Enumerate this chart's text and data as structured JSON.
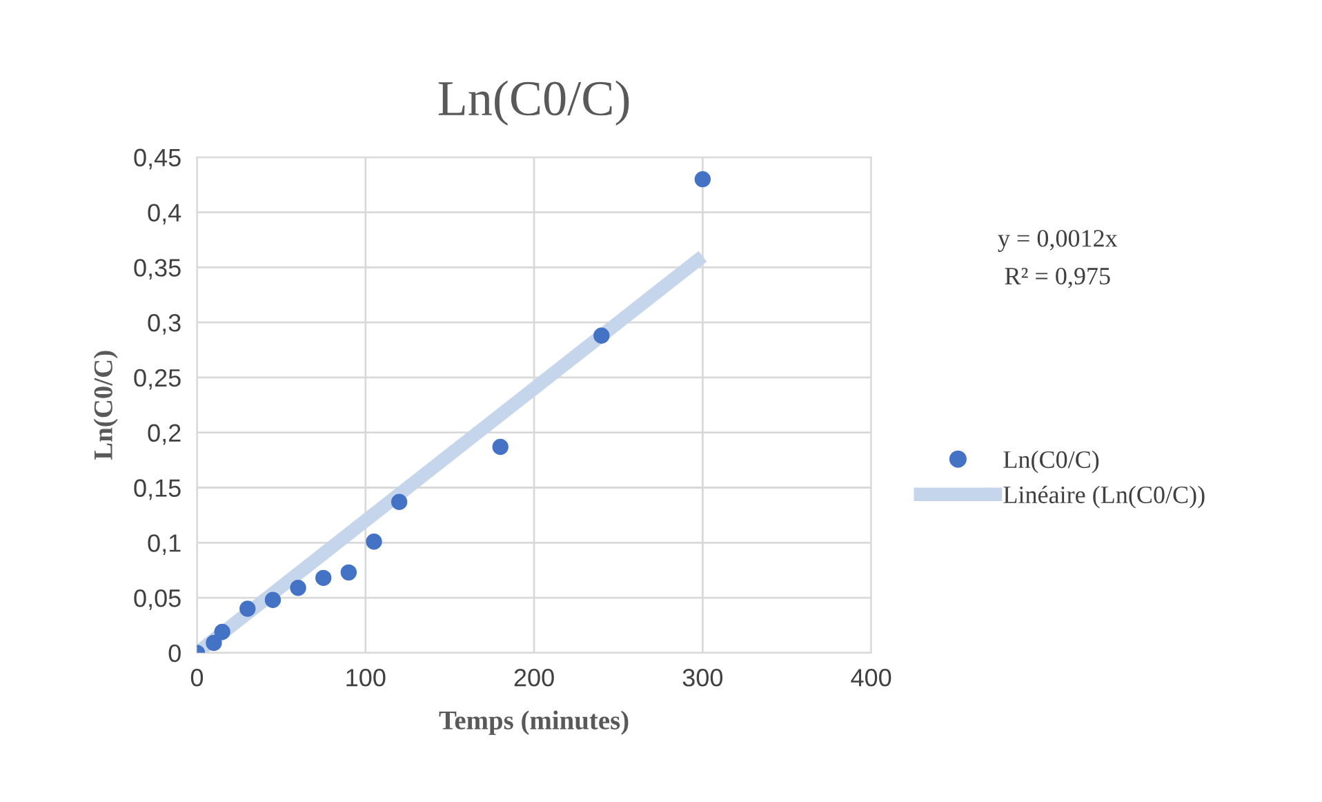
{
  "chart_data": {
    "type": "scatter",
    "title": "Ln(C0/C)",
    "xlabel": "Temps (minutes)",
    "ylabel": "Ln(C0/C)",
    "x": [
      0,
      10,
      15,
      30,
      45,
      60,
      75,
      90,
      105,
      120,
      180,
      240,
      300
    ],
    "series": [
      {
        "name": "Ln(C0/C)",
        "marker": "circle",
        "color": "#4472c4",
        "values": [
          0,
          0.009,
          0.019,
          0.04,
          0.048,
          0.059,
          0.068,
          0.073,
          0.101,
          0.137,
          0.187,
          0.288,
          0.43
        ]
      },
      {
        "name": "Linéaire (Ln(C0/C))",
        "type": "line",
        "marker": "none",
        "color": "#c5d5ec",
        "x": [
          0,
          300
        ],
        "values": [
          0,
          0.36
        ]
      }
    ],
    "annotations": [
      "y = 0,0012x",
      "R² = 0,975"
    ],
    "xlim": [
      0,
      400
    ],
    "xticks": [
      0,
      100,
      200,
      300,
      400
    ],
    "ylim": [
      0,
      0.45
    ],
    "yticks": [
      0,
      {
        "value": 0.05,
        "label": "0,05"
      },
      {
        "value": 0.1,
        "label": "0,1"
      },
      {
        "value": 0.15,
        "label": "0,15"
      },
      {
        "value": 0.2,
        "label": "0,2"
      },
      {
        "value": 0.25,
        "label": "0,25"
      },
      {
        "value": 0.3,
        "label": "0,3"
      },
      {
        "value": 0.35,
        "label": "0,35"
      },
      {
        "value": 0.4,
        "label": "0,4"
      },
      {
        "value": 0.45,
        "label": "0,45"
      }
    ],
    "grid": true,
    "legend": "right"
  }
}
